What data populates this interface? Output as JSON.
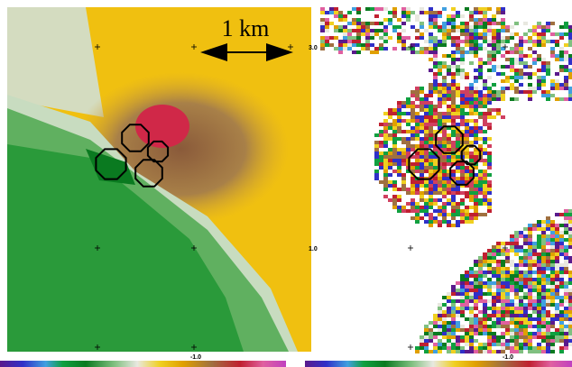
{
  "scale_bar": {
    "label": "1 km"
  },
  "panels": [
    {
      "y_labels": [
        "3.0",
        "1.0"
      ],
      "x_label": "-1.0"
    },
    {
      "x_label": "-1.0"
    }
  ]
}
